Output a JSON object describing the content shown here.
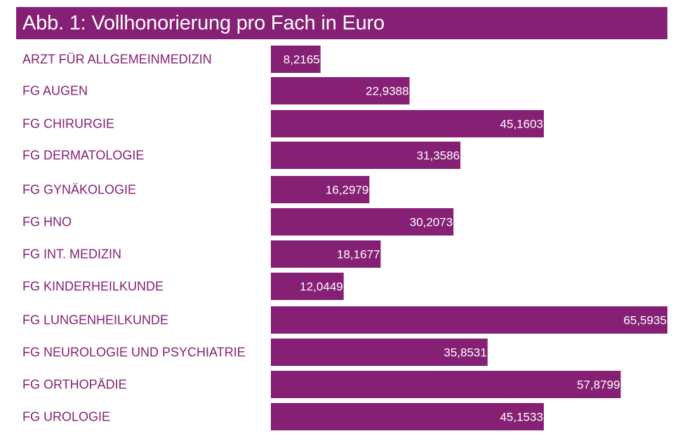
{
  "chart_data": {
    "type": "bar",
    "orientation": "horizontal",
    "title": "Abb. 1: Vollhonorierung pro Fach in Euro",
    "categories": [
      "ARZT FÜR ALLGEMEINMEDIZIN",
      "FG AUGEN",
      "FG CHIRURGIE",
      "FG DERMATOLOGIE",
      "FG GYNÄKOLOGIE",
      "FG HNO",
      "FG INT. MEDIZIN",
      "FG KINDERHEILKUNDE",
      "FG LUNGENHEILKUNDE",
      "FG NEUROLOGIE UND PSYCHIATRIE",
      "FG ORTHOPÄDIE",
      "FG UROLOGIE"
    ],
    "values": [
      8.2165,
      22.9388,
      45.1603,
      31.3586,
      16.2979,
      30.2073,
      18.1677,
      12.0449,
      65.5935,
      35.8531,
      57.8799,
      45.1533
    ],
    "value_labels": [
      "8,2165",
      "22,9388",
      "45,1603",
      "31,3586",
      "16,2979",
      "30,2073",
      "18,1677",
      "12,0449",
      "65,5935",
      "35,8531",
      "57,8799",
      "45,1533"
    ],
    "grid": false,
    "legend": "none",
    "colors": {
      "bar": "#862074",
      "title_bg": "#862074",
      "label": "#862074",
      "value_text": "#ffffff"
    }
  }
}
